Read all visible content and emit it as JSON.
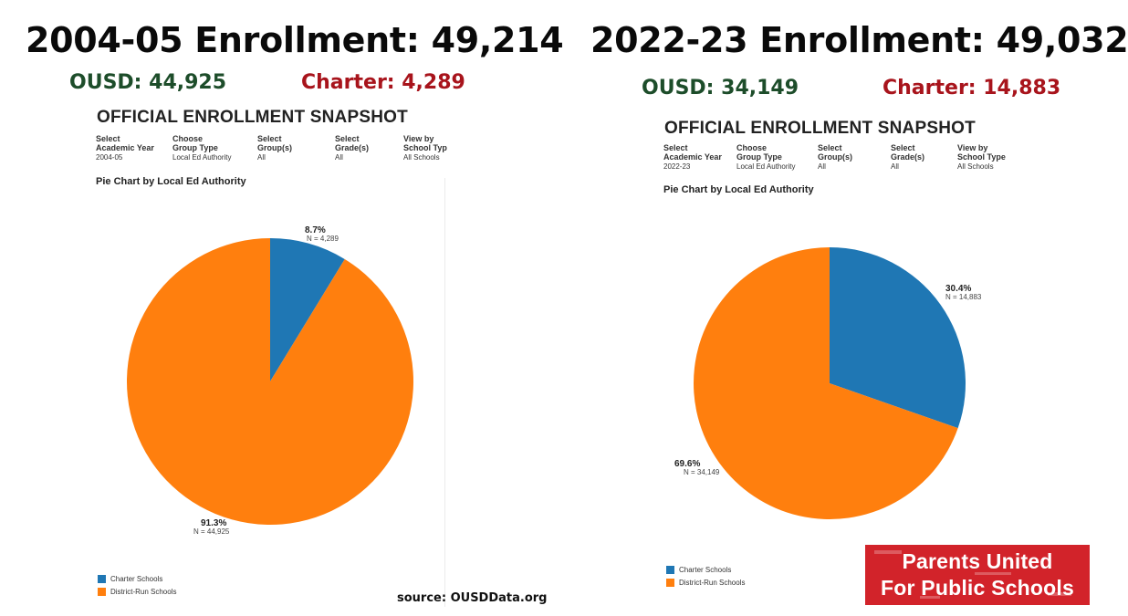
{
  "colors": {
    "charter": "#1f77b4",
    "district": "#ff7f0e",
    "ousd_text": "#1d4d2a",
    "charter_text": "#a8141c",
    "logo_bg": "#d2232a"
  },
  "left": {
    "headline": "2004-05 Enrollment: 49,214",
    "ousd_label": "OUSD: 44,925",
    "charter_label": "Charter: 4,289",
    "snapshot_title": "OFFICIAL ENROLLMENT SNAPSHOT",
    "filters": [
      {
        "label": "Select\nAcademic Year",
        "value": "2004-05"
      },
      {
        "label": "Choose\nGroup Type",
        "value": "Local Ed Authority"
      },
      {
        "label": "Select\nGroup(s)",
        "value": "All"
      },
      {
        "label": "Select\nGrade(s)",
        "value": "All"
      },
      {
        "label": "View by\nSchool Typ",
        "value": "All Schools"
      }
    ],
    "chart_subtitle": "Pie Chart by Local Ed Authority"
  },
  "right": {
    "headline": "2022-23 Enrollment: 49,032",
    "ousd_label": "OUSD: 34,149",
    "charter_label": "Charter: 14,883",
    "snapshot_title": "OFFICIAL ENROLLMENT SNAPSHOT",
    "filters": [
      {
        "label": "Select\nAcademic Year",
        "value": "2022-23"
      },
      {
        "label": "Choose\nGroup Type",
        "value": "Local Ed Authority"
      },
      {
        "label": "Select\nGroup(s)",
        "value": "All"
      },
      {
        "label": "Select\nGrade(s)",
        "value": "All"
      },
      {
        "label": "View by\nSchool Type",
        "value": "All Schools"
      }
    ],
    "chart_subtitle": "Pie Chart by Local Ed Authority"
  },
  "legend": {
    "charter": "Charter Schools",
    "district": "District-Run Schools"
  },
  "source": "source: OUSDData.org",
  "logo": {
    "line1": "Parents United",
    "line2": "For Public Schools"
  },
  "chart_data": [
    {
      "type": "pie",
      "title": "Pie Chart by Local Ed Authority",
      "year": "2004-05",
      "categories": [
        "Charter Schools",
        "District-Run Schools"
      ],
      "values": [
        4289,
        44925
      ],
      "percent_labels": [
        "8.7%",
        "91.3%"
      ],
      "n_labels": [
        "N = 4,289",
        "N = 44,925"
      ],
      "colors": [
        "#1f77b4",
        "#ff7f0e"
      ]
    },
    {
      "type": "pie",
      "title": "Pie Chart by Local Ed Authority",
      "year": "2022-23",
      "categories": [
        "Charter Schools",
        "District-Run Schools"
      ],
      "values": [
        14883,
        34149
      ],
      "percent_labels": [
        "30.4%",
        "69.6%"
      ],
      "n_labels": [
        "N = 14,883",
        "N = 34,149"
      ],
      "colors": [
        "#1f77b4",
        "#ff7f0e"
      ]
    }
  ]
}
